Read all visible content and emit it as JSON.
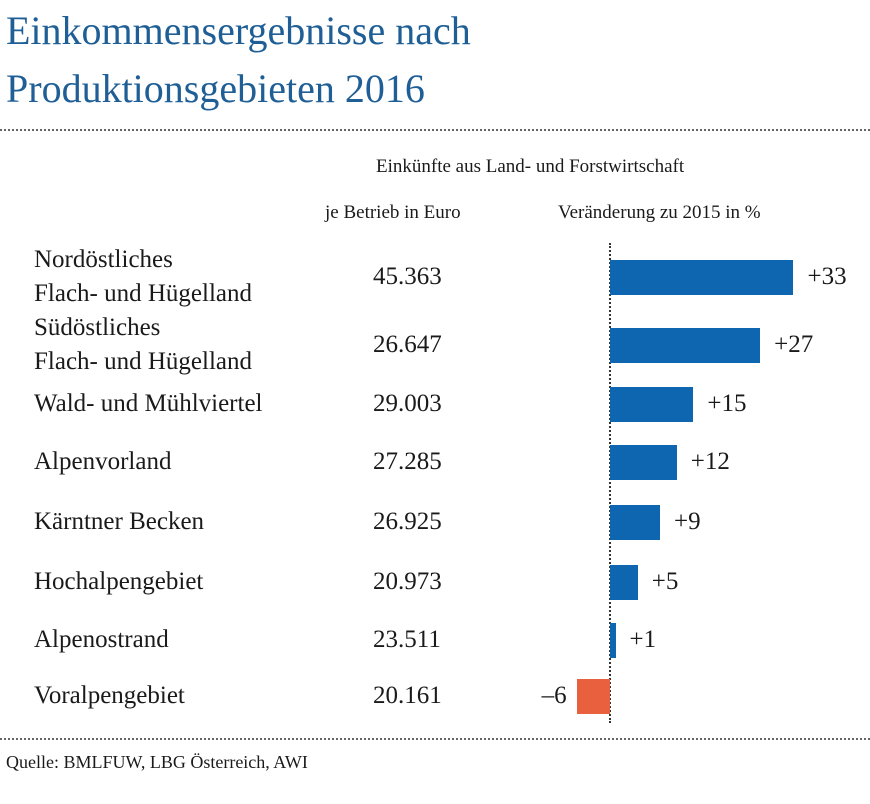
{
  "title": "Einkommensergebnisse nach Produktionsgebieten 2016",
  "header": {
    "group": "Einkünfte aus Land- und Forstwirtschaft",
    "col_value": "je Betrieb in Euro",
    "col_change": "Veränderung zu 2015 in %"
  },
  "source": "Quelle: BMLFUW, LBG Österreich, AWI",
  "colors": {
    "title": "#1f5f96",
    "positive": "#0f66b0",
    "negative": "#e8603e"
  },
  "chart_data": {
    "type": "bar",
    "orientation": "horizontal",
    "title": "Einkommensergebnisse nach Produktionsgebieten 2016",
    "categories": [
      [
        "Nordöstliches",
        "Flach- und Hügelland"
      ],
      [
        "Südöstliches",
        "Flach- und Hügelland"
      ],
      [
        "Wald- und Mühlviertel"
      ],
      [
        "Alpenvorland"
      ],
      [
        "Kärntner Becken"
      ],
      [
        "Hochalpengebiet"
      ],
      [
        "Alpenostrand"
      ],
      [
        "Voralpengebiet"
      ]
    ],
    "income_per_farm": [
      "45.363",
      "26.647",
      "29.003",
      "27.285",
      "26.925",
      "20.973",
      "23.511",
      "20.161"
    ],
    "series": [
      {
        "values": [
          33,
          27,
          15,
          12,
          9,
          5,
          1,
          -6
        ]
      }
    ],
    "value_labels": [
      "+33",
      "+27",
      "+15",
      "+12",
      "+9",
      "+5",
      "+1",
      "–6"
    ],
    "xlim": [
      -6,
      33
    ],
    "grid": false,
    "zero_line": "dotted"
  }
}
